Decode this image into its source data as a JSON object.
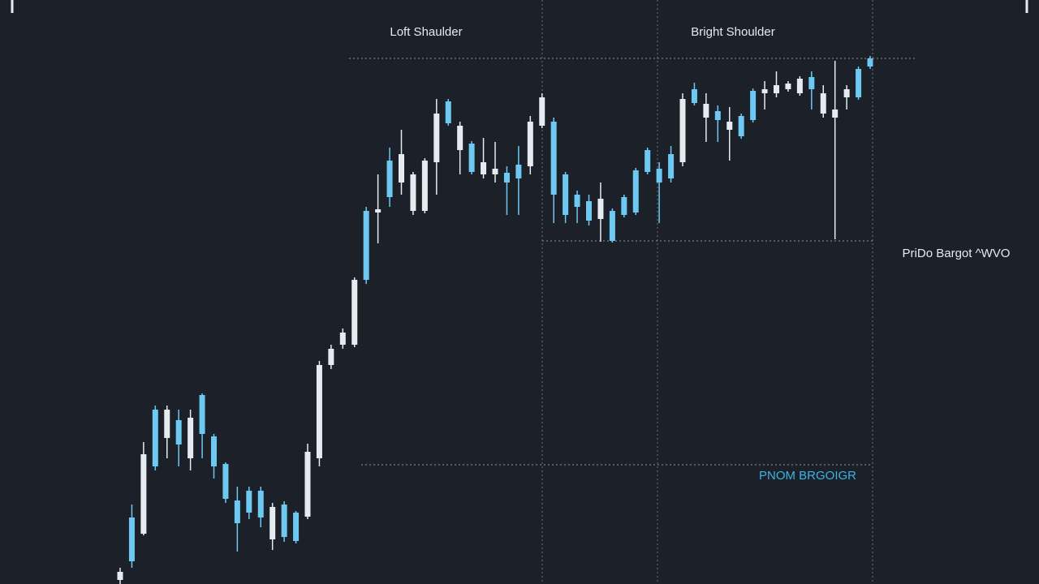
{
  "chart_data": {
    "type": "candlestick",
    "ylim": [
      0,
      720
    ],
    "open": [
      5,
      82,
      62,
      215,
      180,
      202,
      155,
      233,
      182,
      148,
      103,
      115,
      115,
      55,
      98,
      88,
      83,
      155,
      270,
      295,
      295,
      460,
      458,
      522,
      495,
      460,
      460,
      520,
      595,
      535,
      543,
      505,
      505,
      507,
      517,
      515,
      565,
      570,
      505,
      480,
      472,
      450,
      460,
      477,
      510,
      535,
      512,
      530,
      520,
      610,
      575,
      583,
      560,
      577,
      608,
      605,
      605,
      610,
      605,
      625,
      580,
      575,
      600,
      635,
      648
    ],
    "high": [
      20,
      98,
      175,
      220,
      220,
      215,
      215,
      235,
      185,
      150,
      120,
      120,
      120,
      100,
      102,
      90,
      173,
      275,
      295,
      315,
      378,
      465,
      505,
      538,
      560,
      508,
      525,
      598,
      598,
      570,
      546,
      550,
      545,
      515,
      540,
      577,
      605,
      575,
      508,
      485,
      480,
      495,
      463,
      480,
      513,
      538,
      520,
      540,
      605,
      618,
      605,
      590,
      588,
      580,
      611,
      620,
      632,
      620,
      626,
      632,
      615,
      645,
      615,
      638,
      651
    ],
    "low": [
      0,
      20,
      60,
      140,
      155,
      145,
      140,
      155,
      130,
      100,
      40,
      80,
      70,
      42,
      52,
      50,
      80,
      145,
      265,
      290,
      292,
      370,
      420,
      465,
      480,
      455,
      457,
      480,
      565,
      505,
      505,
      500,
      495,
      455,
      455,
      505,
      562,
      445,
      445,
      445,
      442,
      422,
      421,
      452,
      455,
      505,
      445,
      495,
      515,
      590,
      545,
      545,
      522,
      549,
      569,
      585,
      600,
      607,
      602,
      585,
      575,
      425,
      585,
      597,
      635
    ],
    "close": [
      15,
      28,
      160,
      145,
      215,
      172,
      205,
      185,
      145,
      105,
      75,
      88,
      82,
      95,
      58,
      53,
      163,
      270,
      290,
      310,
      375,
      375,
      462,
      477,
      530,
      505,
      522,
      580,
      568,
      565,
      508,
      520,
      512,
      495,
      500,
      570,
      600,
      480,
      455,
      465,
      448,
      475,
      423,
      455,
      458,
      508,
      495,
      500,
      598,
      593,
      592,
      572,
      570,
      552,
      572,
      610,
      615,
      617,
      623,
      610,
      605,
      585,
      610,
      600,
      638
    ],
    "up_color": "#e6ebf0",
    "down_color": "#6ec9f2",
    "levels": [
      648,
      423,
      147
    ],
    "level_color": "#8a95a3",
    "annotations": [
      "Loft Shaulder",
      "Bright Shoulder",
      "PriDo Bargot ^WVO",
      "PNOM BRGOIGR"
    ]
  }
}
